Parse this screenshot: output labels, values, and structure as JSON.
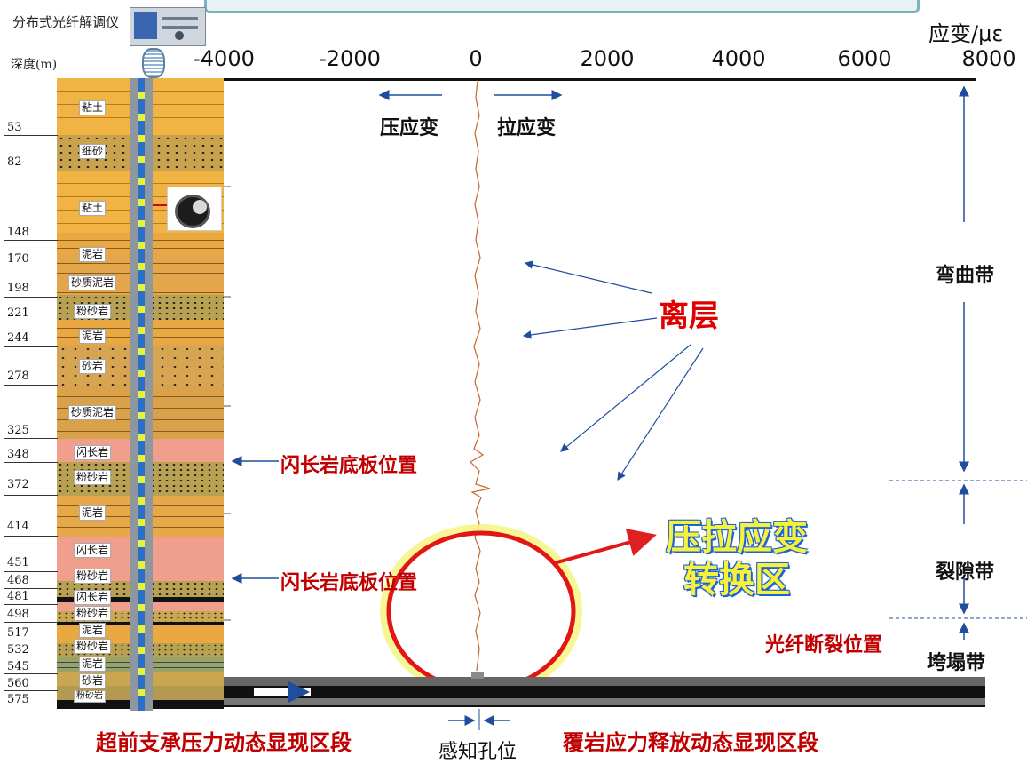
{
  "header": {
    "device_label": "分布式光纤解调仪",
    "depth_header": "深度(m)",
    "axis_unit": "应变/με"
  },
  "axis": {
    "ticks": [
      "-4000",
      "-2000",
      "0",
      "2000",
      "4000",
      "6000",
      "8000"
    ]
  },
  "depths": [
    "53",
    "82",
    "148",
    "170",
    "198",
    "221",
    "244",
    "278",
    "325",
    "348",
    "372",
    "414",
    "451",
    "468",
    "481",
    "498",
    "517",
    "532",
    "545",
    "560",
    "575"
  ],
  "rocks": [
    "粘土",
    "细砂",
    "粘土",
    "泥岩",
    "砂质泥岩",
    "粉砂岩",
    "泥岩",
    "砂岩",
    "砂质泥岩",
    "闪长岩",
    "粉砂岩",
    "泥岩",
    "闪长岩",
    "粉砂岩",
    "闪长岩",
    "粉砂岩",
    "泥岩",
    "粉砂岩",
    "泥岩",
    "砂岩",
    "粉砂岩"
  ],
  "annotations": {
    "compressive": "压应变",
    "tensile": "拉应变",
    "separation": "离层",
    "diorite_floor_1": "闪长岩底板位置",
    "diorite_floor_2": "闪长岩底板位置",
    "transition_line1": "压拉应变",
    "transition_line2": "转换区",
    "fiber_break": "光纤断裂位置",
    "advance_zone": "超前支承压力动态显现区段",
    "overburden_zone": "覆岩应力释放动态显现区段",
    "sensing_hole": "感知孔位"
  },
  "zones": {
    "bending": "弯曲带",
    "fracture": "裂隙带",
    "caving": "垮塌带"
  },
  "colors": {
    "soil": "#f2b345",
    "rock_band": "#d2a04c",
    "diorite": "#ef9f8b",
    "arrow_blue": "#1f4e9e",
    "red_text": "#c00000",
    "highlight": "#f6f23a"
  }
}
